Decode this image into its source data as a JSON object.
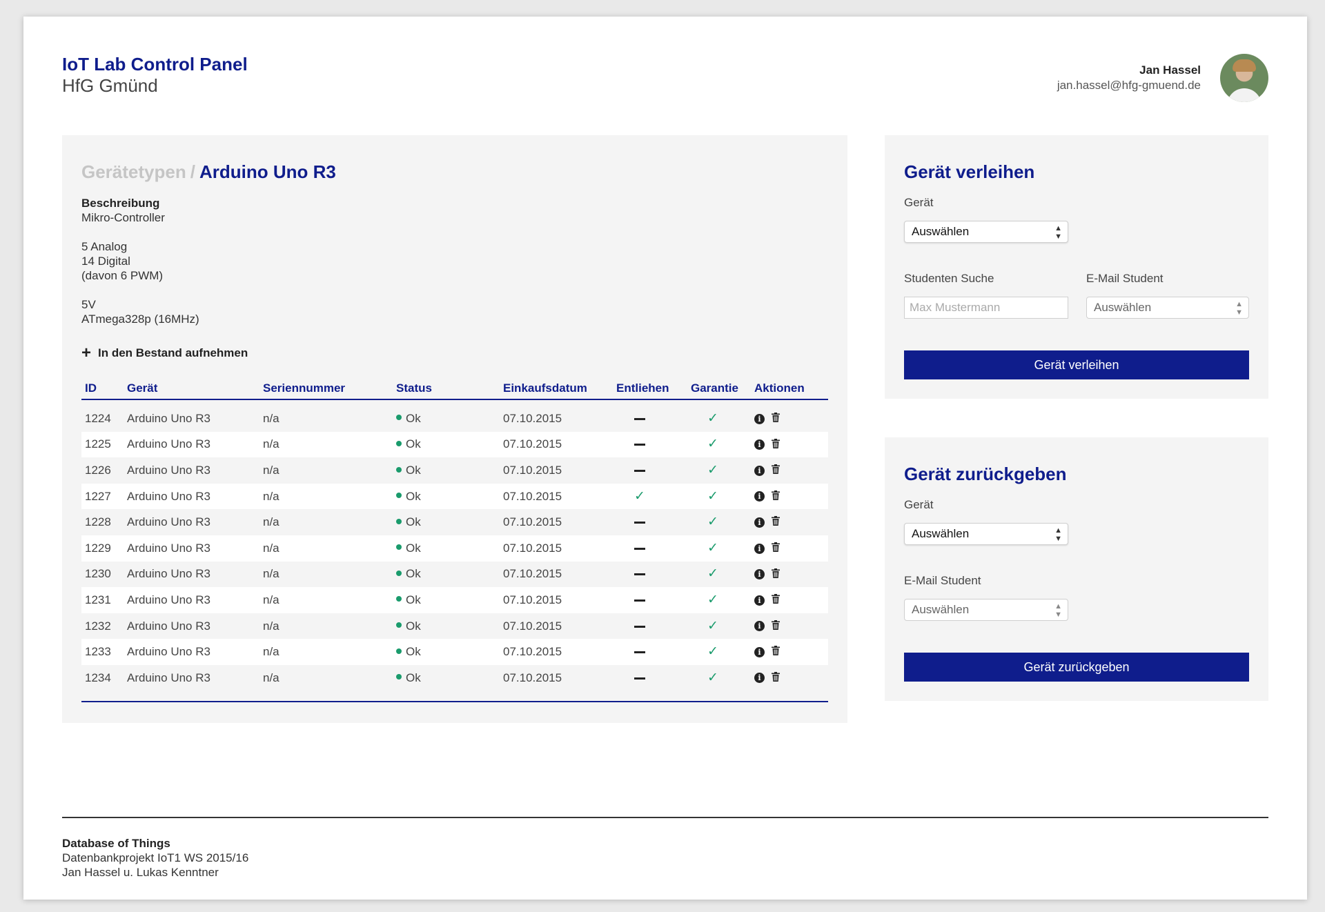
{
  "header": {
    "title": "IoT Lab Control Panel",
    "subtitle": "HfG Gmünd"
  },
  "user": {
    "name": "Jan Hassel",
    "email": "jan.hassel@hfg-gmuend.de"
  },
  "main": {
    "breadcrumb_parent": "Gerätetypen",
    "breadcrumb_separator": "/",
    "breadcrumb_current": "Arduino Uno R3",
    "description_title": "Beschreibung",
    "description_lines": [
      "Mikro-Controller",
      "",
      "5 Analog",
      "14 Digital",
      "(davon 6 PWM)",
      "",
      "5V",
      "ATmega328p (16MHz)"
    ],
    "add_stock_label": "In den Bestand aufnehmen",
    "columns": [
      "ID",
      "Gerät",
      "Seriennummer",
      "Status",
      "Einkaufsdatum",
      "Entliehen",
      "Garantie",
      "Aktionen"
    ],
    "rows": [
      {
        "id": "1224",
        "device": "Arduino Uno R3",
        "serial": "n/a",
        "status": "Ok",
        "date": "07.10.2015",
        "lent": false,
        "warranty": true
      },
      {
        "id": "1225",
        "device": "Arduino Uno R3",
        "serial": "n/a",
        "status": "Ok",
        "date": "07.10.2015",
        "lent": false,
        "warranty": true
      },
      {
        "id": "1226",
        "device": "Arduino Uno R3",
        "serial": "n/a",
        "status": "Ok",
        "date": "07.10.2015",
        "lent": false,
        "warranty": true
      },
      {
        "id": "1227",
        "device": "Arduino Uno R3",
        "serial": "n/a",
        "status": "Ok",
        "date": "07.10.2015",
        "lent": true,
        "warranty": true
      },
      {
        "id": "1228",
        "device": "Arduino Uno R3",
        "serial": "n/a",
        "status": "Ok",
        "date": "07.10.2015",
        "lent": false,
        "warranty": true
      },
      {
        "id": "1229",
        "device": "Arduino Uno R3",
        "serial": "n/a",
        "status": "Ok",
        "date": "07.10.2015",
        "lent": false,
        "warranty": true
      },
      {
        "id": "1230",
        "device": "Arduino Uno R3",
        "serial": "n/a",
        "status": "Ok",
        "date": "07.10.2015",
        "lent": false,
        "warranty": true
      },
      {
        "id": "1231",
        "device": "Arduino Uno R3",
        "serial": "n/a",
        "status": "Ok",
        "date": "07.10.2015",
        "lent": false,
        "warranty": true
      },
      {
        "id": "1232",
        "device": "Arduino Uno R3",
        "serial": "n/a",
        "status": "Ok",
        "date": "07.10.2015",
        "lent": false,
        "warranty": true
      },
      {
        "id": "1233",
        "device": "Arduino Uno R3",
        "serial": "n/a",
        "status": "Ok",
        "date": "07.10.2015",
        "lent": false,
        "warranty": true
      },
      {
        "id": "1234",
        "device": "Arduino Uno R3",
        "serial": "n/a",
        "status": "Ok",
        "date": "07.10.2015",
        "lent": false,
        "warranty": true
      }
    ]
  },
  "lend": {
    "title": "Gerät verleihen",
    "device_label": "Gerät",
    "device_value": "Auswählen",
    "search_label": "Studenten Suche",
    "search_placeholder": "Max Mustermann",
    "email_label": "E-Mail Student",
    "email_value": "Auswählen",
    "button_label": "Gerät verleihen"
  },
  "return": {
    "title": "Gerät zurückgeben",
    "device_label": "Gerät",
    "device_value": "Auswählen",
    "email_label": "E-Mail Student",
    "email_value": "Auswählen",
    "button_label": "Gerät zurückgeben"
  },
  "footer": {
    "title": "Database of Things",
    "line1": "Datenbankprojekt IoT1 WS 2015/16",
    "line2": "Jan Hassel u. Lukas Kenntner"
  },
  "colors": {
    "accent": "#0f1d8c",
    "status_ok": "#1a9b6c",
    "card_bg": "#f4f4f4"
  },
  "icons": [
    "plus-icon",
    "status-dot-icon",
    "dash-icon",
    "check-icon",
    "info-icon",
    "trash-icon",
    "select-arrows-icon"
  ]
}
